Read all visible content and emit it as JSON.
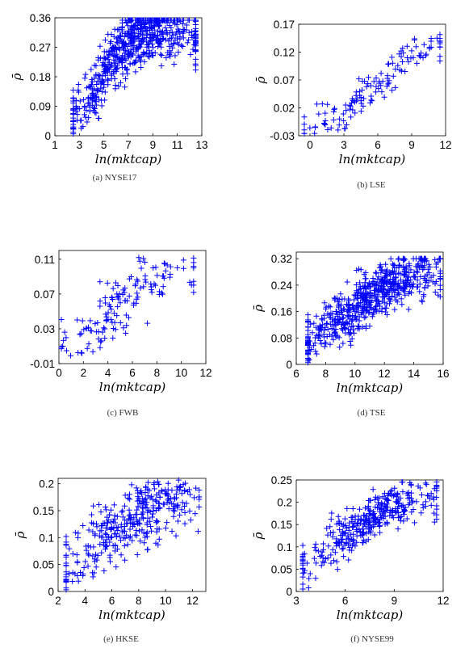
{
  "colors": {
    "marker": "#0000ff",
    "axis": "#000000",
    "caption": "#333333"
  },
  "chart_data": [
    {
      "type": "scatter",
      "marker": "+",
      "caption": "(a) NYSE17",
      "xlabel": "ln(mktcap)",
      "ylabel": "ρ̄",
      "xlim": [
        1,
        13
      ],
      "ylim": [
        0,
        0.36
      ],
      "xticks": [
        "1",
        "3",
        "5",
        "7",
        "9",
        "11",
        "13"
      ],
      "yticks": [
        "0",
        "0.09",
        "0.18",
        "0.27",
        "0.36"
      ],
      "cluster": {
        "n": 700,
        "xmin": 2.5,
        "xmax": 12.5,
        "slope": 0.055,
        "ymax": 0.33,
        "mid": 4.8,
        "noise": 0.045,
        "seed": 11
      }
    },
    {
      "type": "scatter",
      "marker": "+",
      "caption": "(b) LSE",
      "xlabel": "ln(mktcap)",
      "ylabel": "ρ̄",
      "xlim": [
        -1,
        12
      ],
      "ylim": [
        -0.03,
        0.17
      ],
      "xticks": [
        "0",
        "3",
        "6",
        "9",
        "12"
      ],
      "yticks": [
        "-0.03",
        "0.02",
        "0.07",
        "0.12",
        "0.17"
      ],
      "cluster": {
        "n": 140,
        "xmin": -0.5,
        "xmax": 11.5,
        "slope": 0.018,
        "ymax": 0.15,
        "mid": 6,
        "noise": 0.018,
        "seed": 23
      }
    },
    {
      "type": "scatter",
      "marker": "+",
      "caption": "(c) FWB",
      "xlabel": "ln(mktcap)",
      "ylabel": "",
      "xlim": [
        0,
        12
      ],
      "ylim": [
        -0.01,
        0.12
      ],
      "xticks": [
        "0",
        "2",
        "4",
        "6",
        "8",
        "10",
        "12"
      ],
      "yticks": [
        "-0.01",
        "0.03",
        "0.07",
        "0.11"
      ],
      "cluster": {
        "n": 160,
        "xmin": 0.2,
        "xmax": 11,
        "slope": 0.011,
        "ymax": 0.11,
        "mid": 4.5,
        "noise": 0.018,
        "seed": 37
      }
    },
    {
      "type": "scatter",
      "marker": "+",
      "caption": "(d) TSE",
      "xlabel": "ln(mktcap)",
      "ylabel": "ρ̄",
      "xlim": [
        6,
        16
      ],
      "ylim": [
        0,
        0.34
      ],
      "xticks": [
        "6",
        "8",
        "10",
        "12",
        "14",
        "16"
      ],
      "yticks": [
        "0",
        "0.08",
        "0.16",
        "0.24",
        "0.32"
      ],
      "cluster": {
        "n": 650,
        "xmin": 6.8,
        "xmax": 15.8,
        "slope": 0.03,
        "ymax": 0.3,
        "mid": 9.5,
        "noise": 0.04,
        "seed": 53
      }
    },
    {
      "type": "scatter",
      "marker": "+",
      "caption": "(e) HKSE",
      "xlabel": "ln(mktcap)",
      "ylabel": "ρ̄",
      "xlim": [
        2,
        13
      ],
      "ylim": [
        0,
        0.21
      ],
      "xticks": [
        "2",
        "4",
        "6",
        "8",
        "10",
        "12"
      ],
      "yticks": [
        "0",
        "0.05",
        "0.1",
        "0.15",
        "0.2"
      ],
      "cluster": {
        "n": 380,
        "xmin": 2.6,
        "xmax": 12.5,
        "slope": 0.017,
        "ymax": 0.2,
        "mid": 6,
        "noise": 0.03,
        "seed": 71
      }
    },
    {
      "type": "scatter",
      "marker": "+",
      "caption": "(f) NYSE99",
      "xlabel": "ln(mktcap)",
      "ylabel": "ρ̄",
      "xlim": [
        3,
        12
      ],
      "ylim": [
        0,
        0.25
      ],
      "xticks": [
        "3",
        "6",
        "9",
        "12"
      ],
      "yticks": [
        "0",
        "0.05",
        "0.1",
        "0.15",
        "0.2",
        "0.25"
      ],
      "cluster": {
        "n": 380,
        "xmin": 3.4,
        "xmax": 11.6,
        "slope": 0.024,
        "ymax": 0.24,
        "mid": 6,
        "noise": 0.028,
        "seed": 89
      }
    }
  ]
}
